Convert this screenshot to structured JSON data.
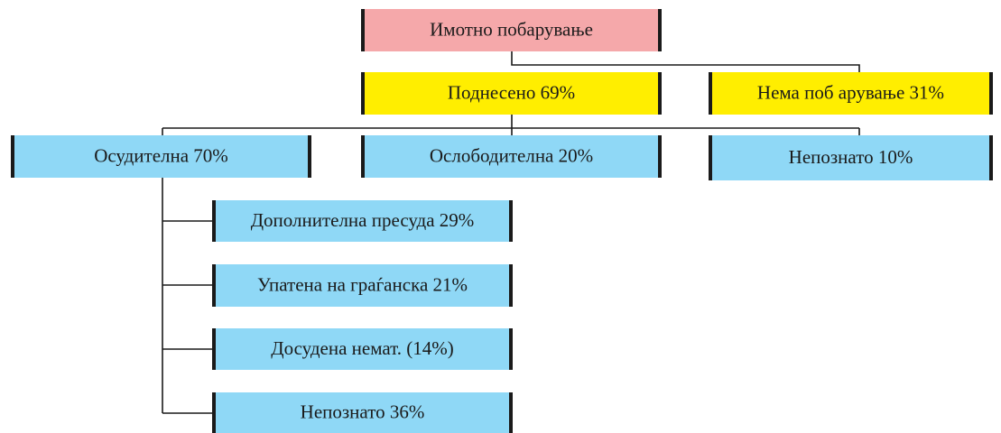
{
  "nodes": [
    {
      "label": "Имотно побарување"
    },
    {
      "label": "Поднесено 69%"
    },
    {
      "label": "Нема поб арување 31%"
    },
    {
      "label": "Осудителна 70%"
    },
    {
      "label": "Ослободителна 20%"
    },
    {
      "label": "Непознато 10%"
    },
    {
      "label": "Дополнителна пресуда 29%"
    },
    {
      "label": "Упатена на граѓанска 21%"
    },
    {
      "label": "Досудена немат. (14%)"
    },
    {
      "label": "Непознато 36%"
    }
  ]
}
